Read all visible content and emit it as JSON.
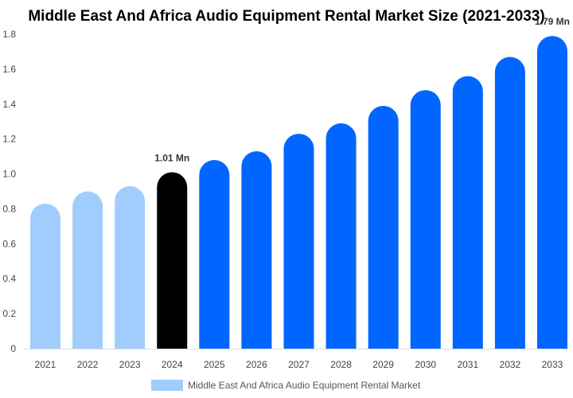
{
  "chart_data": {
    "type": "bar",
    "title": "Middle East And Africa Audio Equipment Rental Market Size (2021-2033)",
    "categories": [
      "2021",
      "2022",
      "2023",
      "2024",
      "2025",
      "2026",
      "2027",
      "2028",
      "2029",
      "2030",
      "2031",
      "2032",
      "2033"
    ],
    "series": [
      {
        "name": "Middle East And Africa Audio Equipment Rental Market",
        "values": [
          0.83,
          0.9,
          0.93,
          1.01,
          1.08,
          1.13,
          1.23,
          1.29,
          1.39,
          1.48,
          1.56,
          1.67,
          1.79
        ]
      }
    ],
    "data_labels": {
      "3": "1.01 Mn",
      "12": "1.79 Mn"
    },
    "yticks": [
      "0",
      "0.2",
      "0.4",
      "0.6",
      "0.8",
      "1.0",
      "1.2",
      "1.4",
      "1.6",
      "1.8"
    ],
    "ylim": [
      0,
      1.8
    ],
    "grid": false,
    "legend_position": "bottom",
    "colors": {
      "historical": "#a0cdfd",
      "base_year": "#000000",
      "forecast": "#0066ff"
    }
  }
}
